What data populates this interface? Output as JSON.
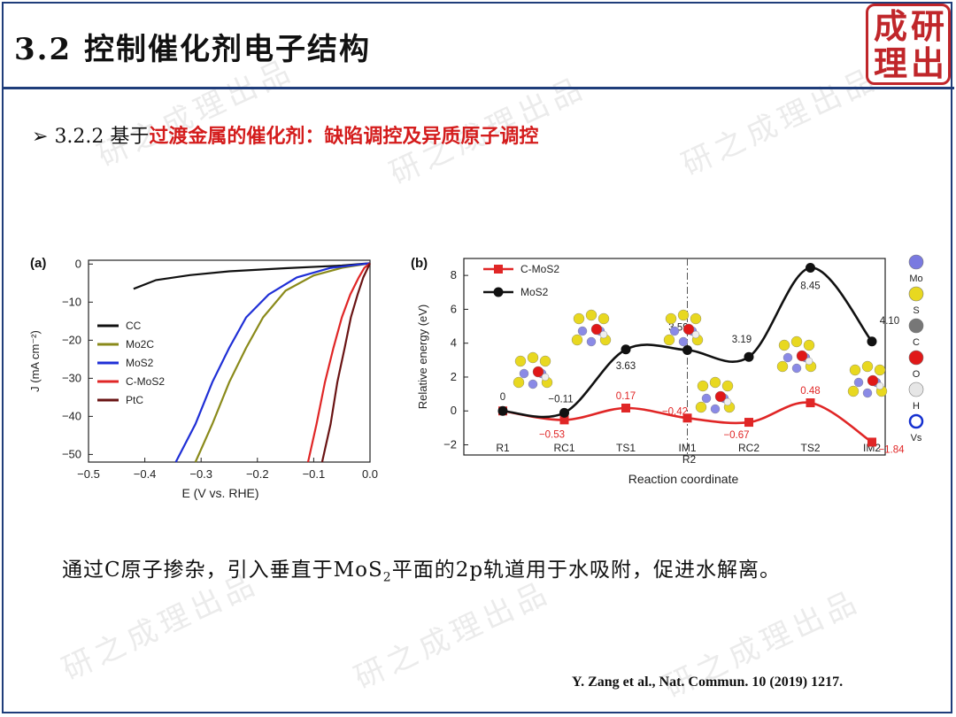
{
  "header": {
    "title": "3.2 控制催化剂电子结构",
    "logo_chars": [
      "成",
      "研",
      "理",
      "出"
    ]
  },
  "bullet": {
    "marker": "➢",
    "prefix": "3.2.2 基于",
    "highlight": "过渡金属的催化剂：缺陷调控及异质原子调控"
  },
  "watermark": "研之成理出品",
  "sentence": {
    "part1": "通过C原子掺杂，引入垂直于MoS",
    "sub": "2",
    "part2": "平面的2p轨道用于水吸附，促进水解离。"
  },
  "reference": "Y. Zang et al., Nat. Commun. 10 (2019) 1217.",
  "colors": {
    "accent": "#1f3d7a",
    "highlight": "#d41c1c",
    "logo": "#c0262a"
  },
  "chart_data": [
    {
      "type": "line",
      "panel": "(a)",
      "xlabel": "E (V vs. RHE)",
      "ylabel": "J (mA cm⁻²)",
      "xlim": [
        -0.5,
        0.0
      ],
      "ylim": [
        -52,
        1
      ],
      "x_ticks": [
        "−0.5",
        "−0.4",
        "−0.3",
        "−0.2",
        "−0.1",
        "0.0"
      ],
      "y_ticks": [
        "0",
        "−10",
        "−20",
        "−30",
        "−40",
        "−50"
      ],
      "series": [
        {
          "name": "CC",
          "color": "#111111",
          "points": [
            [
              -0.42,
              -6.5
            ],
            [
              -0.38,
              -4.2
            ],
            [
              -0.32,
              -2.9
            ],
            [
              -0.25,
              -1.9
            ],
            [
              -0.15,
              -1.1
            ],
            [
              -0.05,
              -0.4
            ],
            [
              0.0,
              0.2
            ]
          ]
        },
        {
          "name": "Mo2C",
          "color": "#8a8a1a",
          "points": [
            [
              -0.31,
              -52
            ],
            [
              -0.28,
              -42
            ],
            [
              -0.25,
              -31
            ],
            [
              -0.22,
              -22
            ],
            [
              -0.19,
              -14
            ],
            [
              -0.15,
              -7
            ],
            [
              -0.1,
              -3
            ],
            [
              -0.05,
              -1
            ],
            [
              0.0,
              0.2
            ]
          ]
        },
        {
          "name": "MoS2",
          "color": "#1f2fd6",
          "points": [
            [
              -0.345,
              -52
            ],
            [
              -0.31,
              -42
            ],
            [
              -0.28,
              -31
            ],
            [
              -0.25,
              -22
            ],
            [
              -0.22,
              -14
            ],
            [
              -0.18,
              -8
            ],
            [
              -0.13,
              -3.5
            ],
            [
              -0.07,
              -1
            ],
            [
              0.0,
              0.2
            ]
          ]
        },
        {
          "name": "C-MoS2",
          "color": "#e02626",
          "points": [
            [
              -0.11,
              -52
            ],
            [
              -0.095,
              -42
            ],
            [
              -0.08,
              -31
            ],
            [
              -0.065,
              -22
            ],
            [
              -0.05,
              -14
            ],
            [
              -0.035,
              -8
            ],
            [
              -0.02,
              -3.5
            ],
            [
              -0.01,
              -1
            ],
            [
              0.0,
              0.2
            ]
          ]
        },
        {
          "name": "PtC",
          "color": "#6a1414",
          "points": [
            [
              -0.085,
              -52
            ],
            [
              -0.07,
              -42
            ],
            [
              -0.058,
              -31
            ],
            [
              -0.045,
              -22
            ],
            [
              -0.034,
              -14
            ],
            [
              -0.022,
              -8
            ],
            [
              -0.012,
              -3.5
            ],
            [
              -0.004,
              -1
            ],
            [
              0.0,
              0.2
            ]
          ]
        }
      ]
    },
    {
      "type": "line",
      "panel": "(b)",
      "xlabel": "Reaction coordinate",
      "ylabel": "Relative energy (eV)",
      "ylim": [
        -2.6,
        9
      ],
      "y_ticks": [
        "8",
        "6",
        "4",
        "2",
        "0",
        "−2"
      ],
      "categories": [
        "R1",
        "RC1",
        "TS1",
        "IM1",
        "RC2",
        "TS2",
        "IM2"
      ],
      "im1_sublabel": "R2",
      "series": [
        {
          "name": "C-MoS2",
          "color": "#e02626",
          "values": [
            0,
            -0.53,
            0.17,
            -0.42,
            -0.67,
            0.48,
            -1.84
          ],
          "labels": [
            "",
            "−0.53",
            "0.17",
            "−0.42",
            "−0.67",
            "0.48",
            "−1.84"
          ]
        },
        {
          "name": "MoS2",
          "color": "#111111",
          "values": [
            0,
            -0.11,
            3.63,
            3.59,
            3.19,
            8.45,
            4.1
          ],
          "labels": [
            "0",
            "−0.11",
            "3.63",
            "3.59",
            "3.19",
            "8.45",
            "4.10"
          ]
        }
      ],
      "atom_legend": [
        {
          "label": "Mo",
          "color": "#7a7ae0"
        },
        {
          "label": "S",
          "color": "#e8d820"
        },
        {
          "label": "C",
          "color": "#777777"
        },
        {
          "label": "O",
          "color": "#e01818"
        },
        {
          "label": "H",
          "color": "#e6e6e6"
        },
        {
          "label": "Vs",
          "color": "#1530d0"
        }
      ]
    }
  ]
}
